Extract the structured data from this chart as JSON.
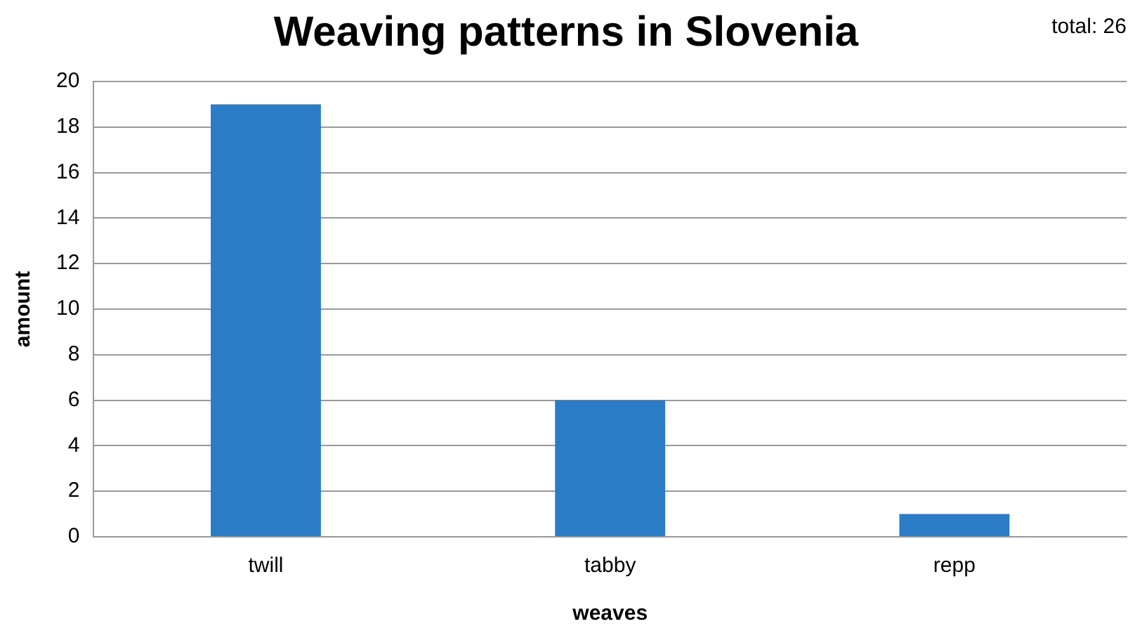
{
  "chart_data": {
    "type": "bar",
    "title": "Weaving patterns in Slovenia",
    "xlabel": "weaves",
    "ylabel": "amount",
    "categories": [
      "twill",
      "tabby",
      "repp"
    ],
    "values": [
      19,
      6,
      1
    ],
    "color": "#2a7cc6",
    "ylim": [
      0,
      20
    ],
    "yticks": [
      0,
      2,
      4,
      6,
      8,
      10,
      12,
      14,
      16,
      18,
      20
    ],
    "grid": "y",
    "annotations": [
      "total: 26"
    ]
  }
}
